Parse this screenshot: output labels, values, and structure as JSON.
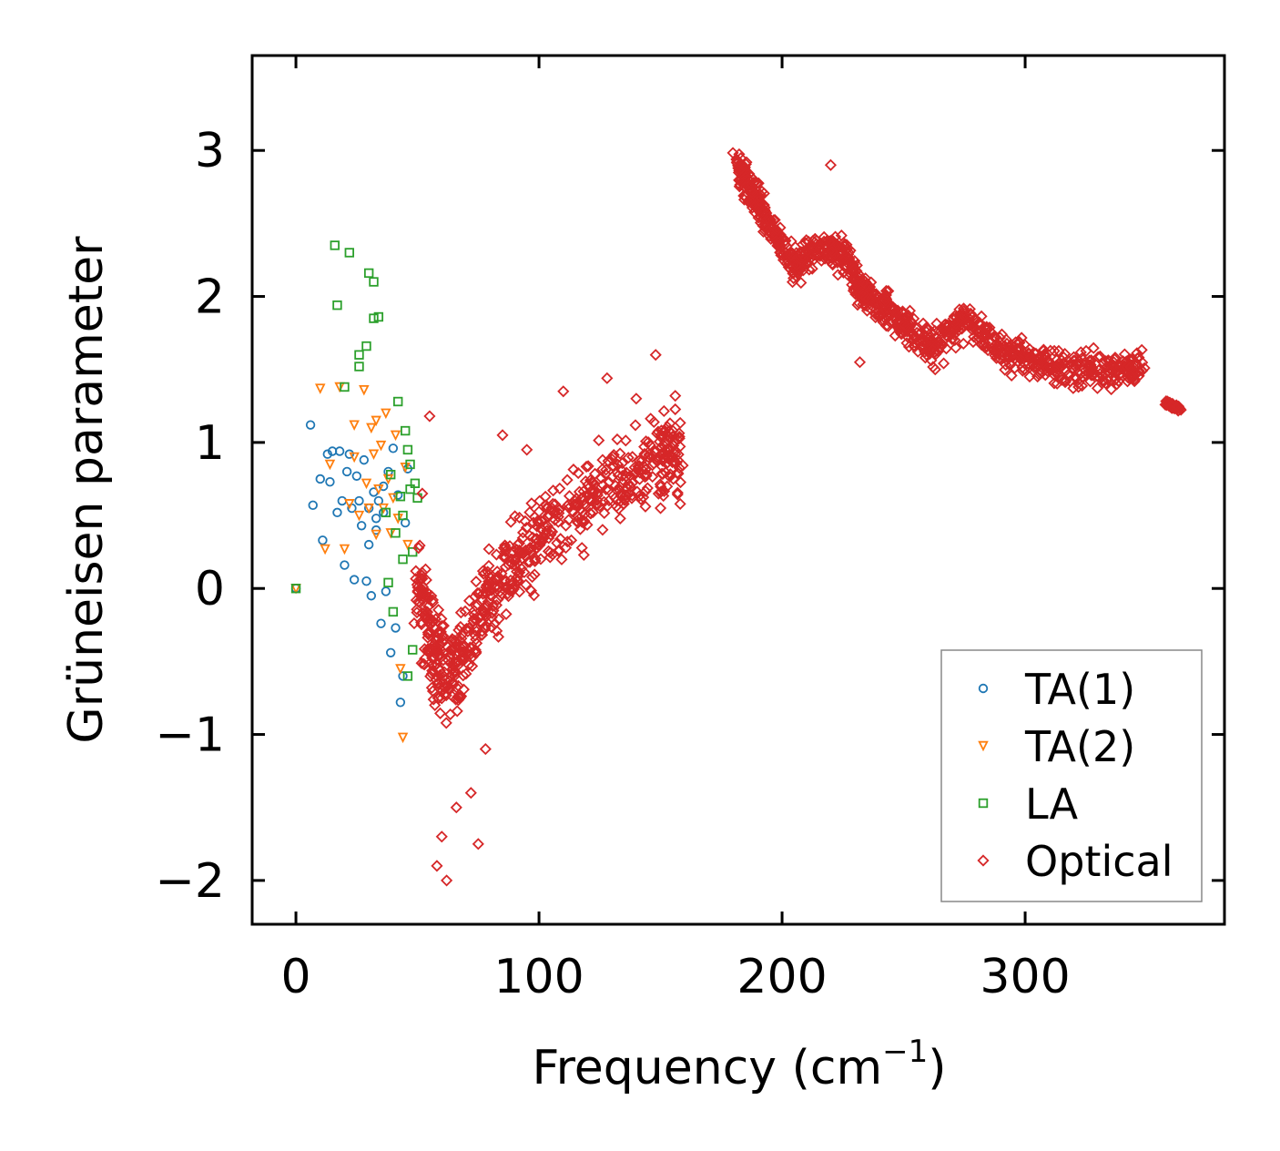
{
  "chart_data": {
    "type": "scatter",
    "title": "",
    "xlabel": "Frequency (cm",
    "xlabel_sup": "−1",
    "xlabel_end": ")",
    "ylabel": "Grüneisen parameter",
    "xlim": [
      -18,
      382
    ],
    "ylim": [
      -2.3,
      3.65
    ],
    "xticks": [
      0,
      100,
      200,
      300
    ],
    "xtick_labels": [
      "0",
      "100",
      "200",
      "300"
    ],
    "yticks": [
      -2,
      -1,
      0,
      1,
      2,
      3
    ],
    "ytick_labels": [
      "−2",
      "−1",
      "0",
      "1",
      "2",
      "3"
    ],
    "legend_position": "lower-right",
    "series": [
      {
        "name": "TA(1)",
        "marker": "circle",
        "color": "#1f77b4",
        "points": [
          [
            0,
            0
          ],
          [
            6,
            1.12
          ],
          [
            7,
            0.57
          ],
          [
            10,
            0.75
          ],
          [
            11,
            0.33
          ],
          [
            13,
            0.92
          ],
          [
            14,
            0.73
          ],
          [
            15,
            0.94
          ],
          [
            17,
            0.52
          ],
          [
            18,
            0.94
          ],
          [
            19,
            0.6
          ],
          [
            20,
            0.16
          ],
          [
            21,
            0.8
          ],
          [
            22,
            0.92
          ],
          [
            23,
            0.55
          ],
          [
            24,
            0.06
          ],
          [
            25,
            0.77
          ],
          [
            26,
            0.6
          ],
          [
            27,
            0.43
          ],
          [
            28,
            0.88
          ],
          [
            29,
            0.05
          ],
          [
            30,
            0.3
          ],
          [
            31,
            -0.05
          ],
          [
            32,
            0.66
          ],
          [
            33,
            0.48
          ],
          [
            34,
            0.6
          ],
          [
            35,
            -0.24
          ],
          [
            36,
            0.52
          ],
          [
            37,
            -0.02
          ],
          [
            38,
            0.8
          ],
          [
            39,
            -0.44
          ],
          [
            40,
            0.96
          ],
          [
            41,
            -0.27
          ],
          [
            42,
            0.64
          ],
          [
            43,
            -0.78
          ],
          [
            44,
            -0.6
          ],
          [
            45,
            0.45
          ],
          [
            46,
            0.82
          ],
          [
            30,
            0.55
          ],
          [
            36,
            0.7
          ],
          [
            33,
            0.4
          ]
        ]
      },
      {
        "name": "TA(2)",
        "marker": "triangle-down",
        "color": "#ff7f0e",
        "points": [
          [
            0,
            0
          ],
          [
            10,
            1.37
          ],
          [
            12,
            0.27
          ],
          [
            14,
            0.85
          ],
          [
            18,
            1.38
          ],
          [
            20,
            0.27
          ],
          [
            22,
            0.58
          ],
          [
            24,
            0.9
          ],
          [
            26,
            0.5
          ],
          [
            28,
            1.36
          ],
          [
            29,
            0.72
          ],
          [
            30,
            0.55
          ],
          [
            31,
            1.1
          ],
          [
            32,
            0.92
          ],
          [
            33,
            0.37
          ],
          [
            34,
            0.68
          ],
          [
            35,
            0.98
          ],
          [
            36,
            0.55
          ],
          [
            37,
            1.2
          ],
          [
            38,
            0.75
          ],
          [
            39,
            0.38
          ],
          [
            40,
            0.62
          ],
          [
            41,
            1.05
          ],
          [
            42,
            0.48
          ],
          [
            43,
            -0.55
          ],
          [
            44,
            -1.02
          ],
          [
            45,
            0.83
          ],
          [
            46,
            0.3
          ],
          [
            24,
            1.12
          ],
          [
            33,
            1.15
          ]
        ]
      },
      {
        "name": "LA",
        "marker": "square",
        "color": "#2ca02c",
        "points": [
          [
            0,
            0
          ],
          [
            16,
            2.35
          ],
          [
            17,
            1.94
          ],
          [
            20,
            1.38
          ],
          [
            22,
            2.3
          ],
          [
            26,
            1.52
          ],
          [
            26,
            1.6
          ],
          [
            29,
            1.66
          ],
          [
            30,
            2.16
          ],
          [
            32,
            2.1
          ],
          [
            32,
            1.85
          ],
          [
            34,
            1.86
          ],
          [
            37,
            0.52
          ],
          [
            38,
            0.04
          ],
          [
            39,
            0.78
          ],
          [
            40,
            -0.16
          ],
          [
            41,
            0.38
          ],
          [
            42,
            1.28
          ],
          [
            43,
            0.63
          ],
          [
            44,
            0.2
          ],
          [
            45,
            1.08
          ],
          [
            46,
            -0.6
          ],
          [
            47,
            0.85
          ],
          [
            47,
            0.68
          ],
          [
            48,
            0.25
          ],
          [
            48,
            -0.42
          ],
          [
            49,
            0.72
          ],
          [
            50,
            0.62
          ],
          [
            46,
            0.95
          ],
          [
            44,
            0.5
          ]
        ]
      },
      {
        "name": "Optical",
        "marker": "diamond",
        "color": "#d62728",
        "segments": [
          [
            [
              50,
              0.0
            ],
            [
              56,
              -0.4
            ],
            [
              62,
              -0.6
            ],
            [
              70,
              -0.4
            ],
            [
              80,
              -0.05
            ],
            [
              92,
              0.2
            ],
            [
              105,
              0.45
            ],
            [
              120,
              0.6
            ],
            [
              135,
              0.75
            ],
            [
              150,
              0.9
            ],
            [
              158,
              0.95
            ]
          ],
          [
            [
              180,
              2.95
            ],
            [
              188,
              2.7
            ],
            [
              195,
              2.5
            ],
            [
              205,
              2.2
            ],
            [
              215,
              2.35
            ],
            [
              225,
              2.3
            ],
            [
              232,
              2.05
            ],
            [
              240,
              1.95
            ],
            [
              250,
              1.8
            ],
            [
              262,
              1.65
            ],
            [
              275,
              1.85
            ],
            [
              290,
              1.65
            ],
            [
              305,
              1.55
            ],
            [
              320,
              1.5
            ],
            [
              335,
              1.5
            ],
            [
              348,
              1.52
            ]
          ],
          [
            [
              358,
              1.27
            ],
            [
              364,
              1.23
            ]
          ]
        ],
        "outliers": [
          [
            58,
            -1.9
          ],
          [
            60,
            -1.7
          ],
          [
            62,
            -2.0
          ],
          [
            66,
            -1.5
          ],
          [
            72,
            -1.4
          ],
          [
            75,
            -1.75
          ],
          [
            78,
            -1.1
          ],
          [
            55,
            1.18
          ],
          [
            52,
            0.65
          ],
          [
            110,
            1.35
          ],
          [
            128,
            1.44
          ],
          [
            140,
            1.3
          ],
          [
            148,
            1.6
          ],
          [
            220,
            2.9
          ],
          [
            232,
            1.55
          ],
          [
            263,
            1.5
          ],
          [
            85,
            1.05
          ],
          [
            95,
            0.95
          ],
          [
            150,
            0.55
          ]
        ]
      }
    ]
  }
}
